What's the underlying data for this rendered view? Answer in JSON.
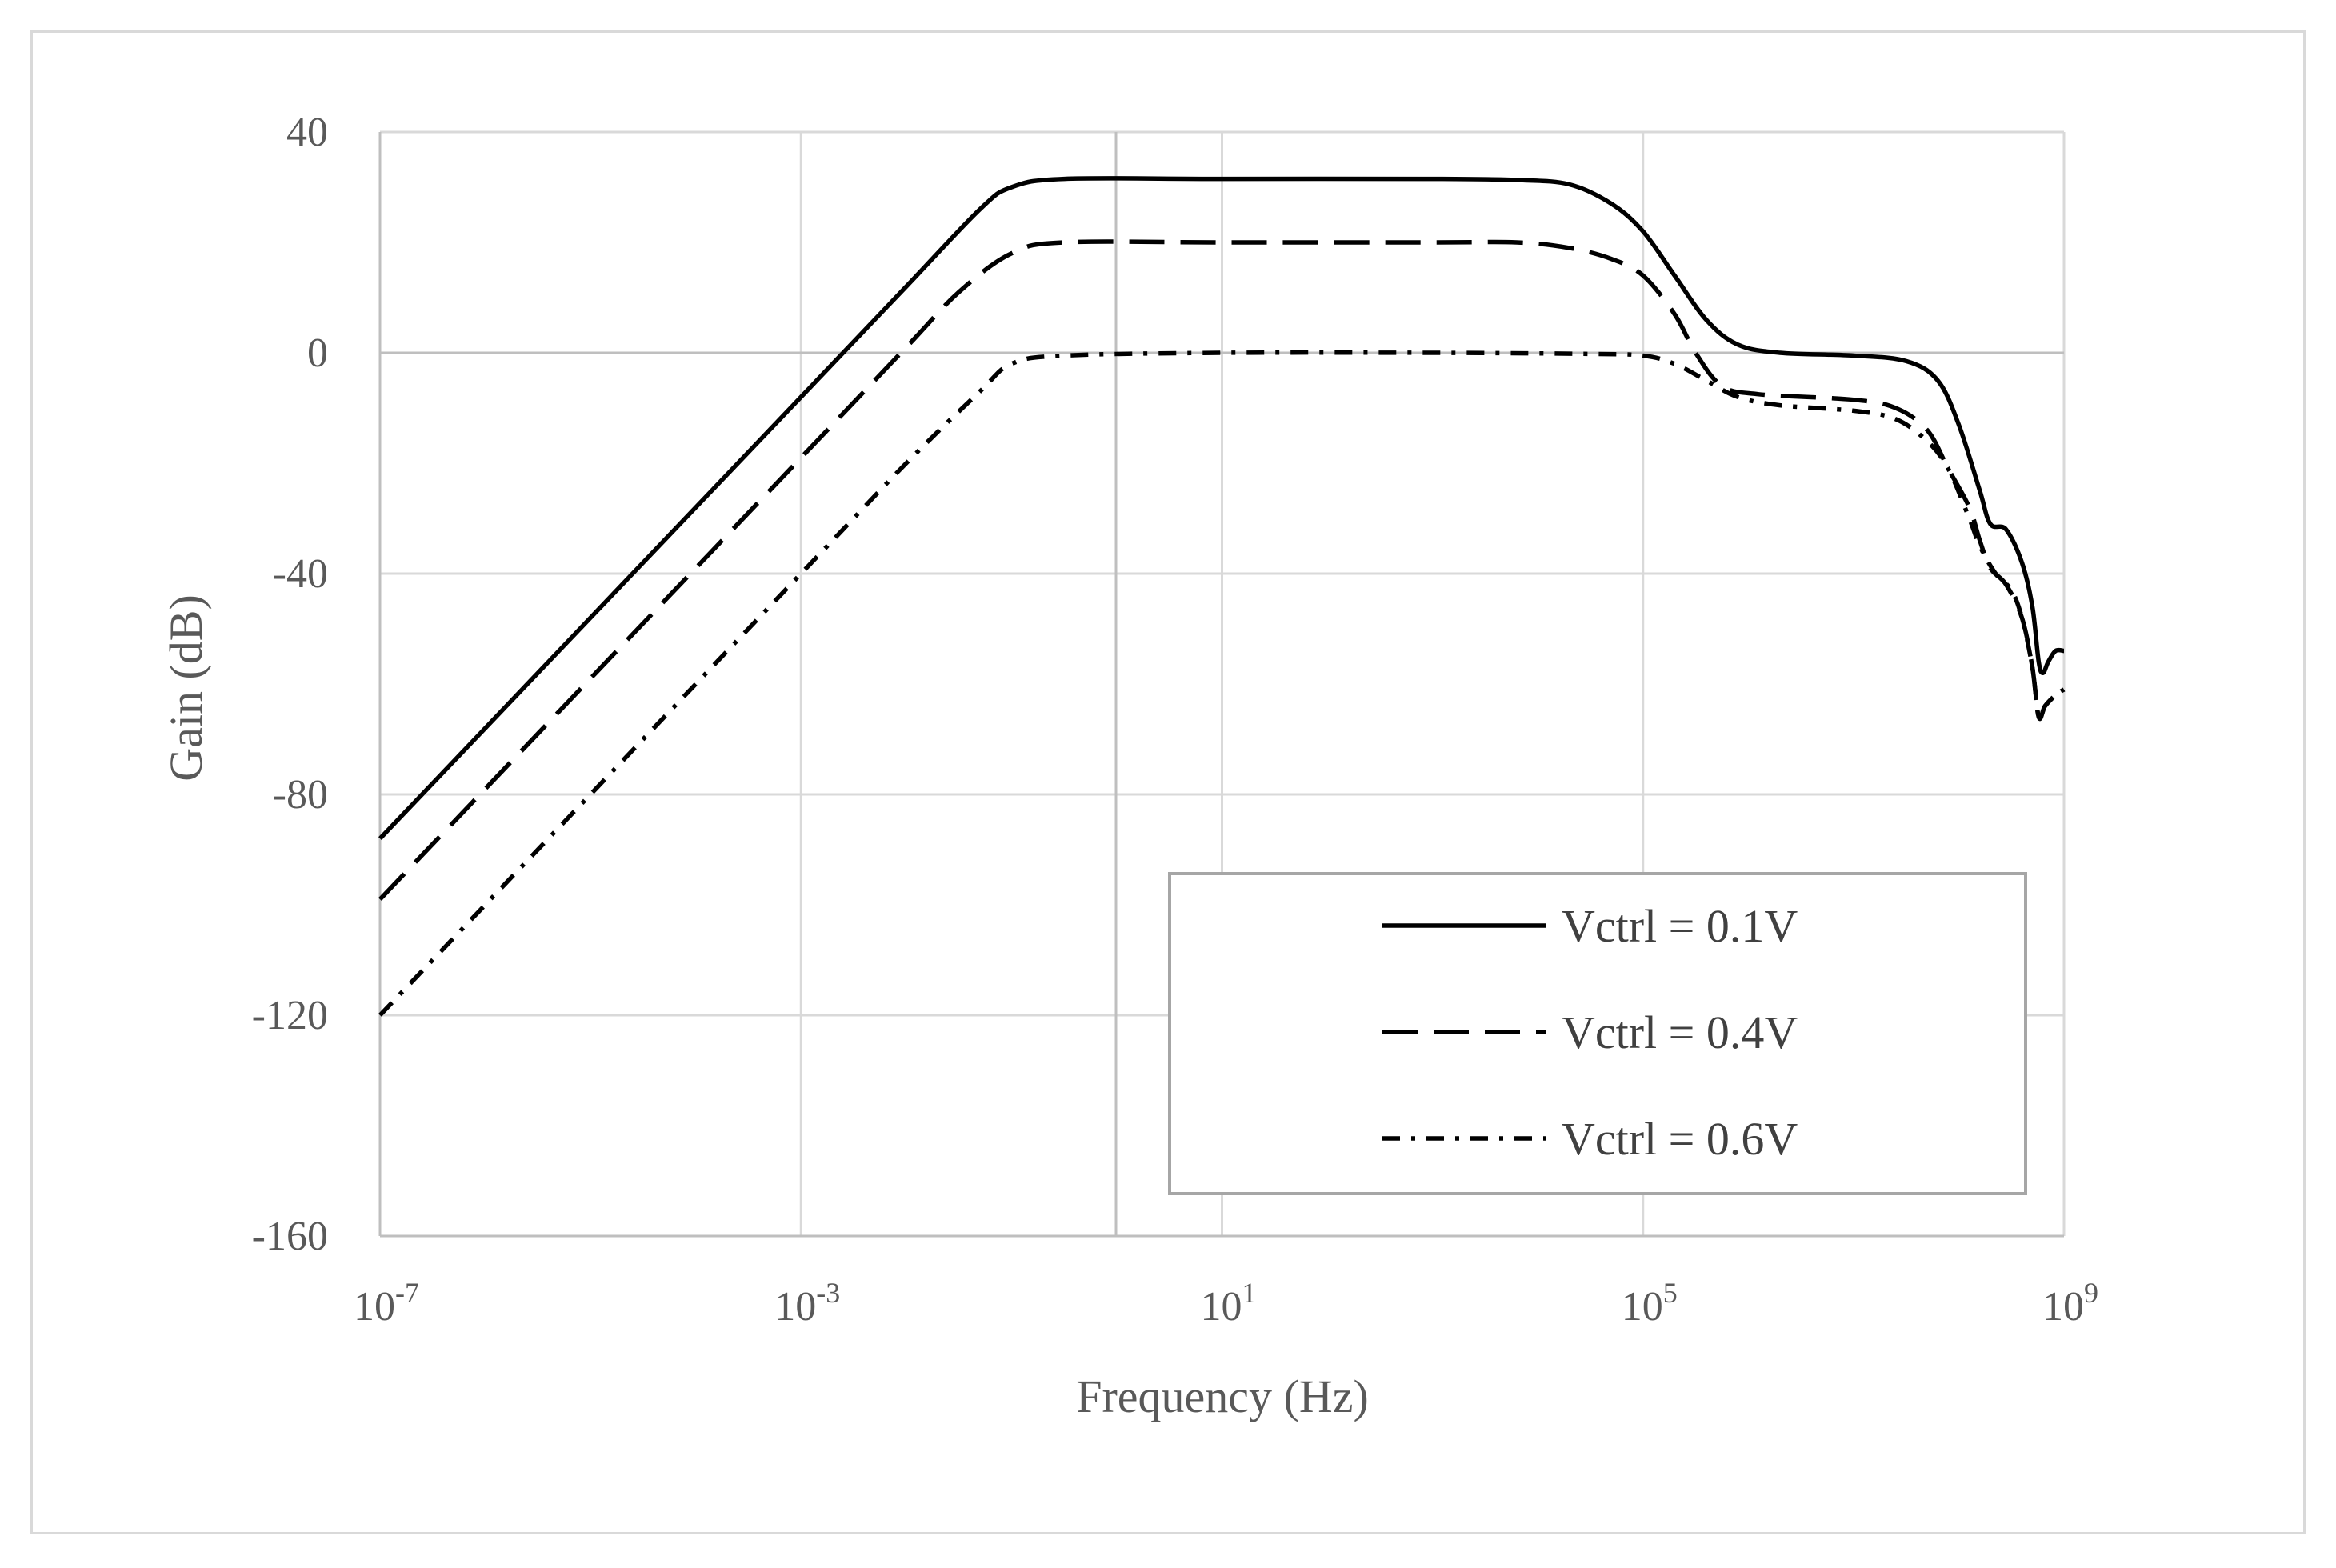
{
  "chart_data": {
    "type": "line",
    "title": "",
    "xlabel": "Frequency (Hz)",
    "ylabel": "Gain (dB)",
    "x_scale": "log10",
    "xlim_exponent": [
      -7,
      9
    ],
    "ylim": [
      -160,
      40
    ],
    "x_ticks": [
      {
        "base": "10",
        "exp": "-7",
        "value": -7
      },
      {
        "base": "10",
        "exp": "-3",
        "value": -3
      },
      {
        "base": "10",
        "exp": "1",
        "value": 1
      },
      {
        "base": "10",
        "exp": "5",
        "value": 5
      },
      {
        "base": "10",
        "exp": "9",
        "value": 9
      }
    ],
    "y_ticks": [
      "40",
      "0",
      "-40",
      "-80",
      "-120",
      "-160"
    ],
    "y_tick_values": [
      40,
      0,
      -40,
      -80,
      -120,
      -160
    ],
    "x_grid_extra": [
      -0.0
    ],
    "grid": true,
    "legend_position": "bottom-right",
    "series": [
      {
        "name": "Vctrl = 0.1V",
        "dash": "solid",
        "points": [
          [
            -7,
            -88
          ],
          [
            -3,
            -8
          ],
          [
            -2,
            12
          ],
          [
            -1.3,
            26
          ],
          [
            -1,
            30
          ],
          [
            -0.5,
            31.5
          ],
          [
            1,
            31.5
          ],
          [
            3,
            31.5
          ],
          [
            3.8,
            31.3
          ],
          [
            4.3,
            30.5
          ],
          [
            4.7,
            27
          ],
          [
            5,
            22
          ],
          [
            5.3,
            14
          ],
          [
            5.6,
            6
          ],
          [
            5.9,
            1.5
          ],
          [
            6.3,
            0
          ],
          [
            7,
            -0.5
          ],
          [
            7.5,
            -1.5
          ],
          [
            7.8,
            -5
          ],
          [
            8.0,
            -13
          ],
          [
            8.2,
            -25
          ],
          [
            8.3,
            -31
          ],
          [
            8.45,
            -32
          ],
          [
            8.6,
            -38
          ],
          [
            8.7,
            -46
          ],
          [
            8.76,
            -56
          ],
          [
            8.8,
            -58
          ],
          [
            8.85,
            -56
          ],
          [
            8.92,
            -54
          ],
          [
            9,
            -54
          ]
        ]
      },
      {
        "name": "Vctrl = 0.4V",
        "dash": "long-dash",
        "points": [
          [
            -7,
            -99
          ],
          [
            -3,
            -19
          ],
          [
            -2,
            1
          ],
          [
            -1.5,
            11
          ],
          [
            -1,
            18
          ],
          [
            -0.5,
            20
          ],
          [
            1,
            20
          ],
          [
            3,
            20
          ],
          [
            3.8,
            20
          ],
          [
            4.3,
            19
          ],
          [
            4.7,
            17
          ],
          [
            5,
            14
          ],
          [
            5.3,
            7
          ],
          [
            5.5,
            0
          ],
          [
            5.75,
            -6
          ],
          [
            6.1,
            -7.5
          ],
          [
            7,
            -8.5
          ],
          [
            7.4,
            -10
          ],
          [
            7.7,
            -14
          ],
          [
            7.9,
            -21
          ],
          [
            8.1,
            -28
          ],
          [
            8.2,
            -34
          ],
          [
            8.3,
            -39
          ],
          [
            8.45,
            -42
          ],
          [
            8.6,
            -48
          ],
          [
            8.7,
            -57
          ],
          [
            8.76,
            -66
          ],
          [
            8.82,
            -64
          ],
          [
            8.92,
            -62
          ],
          [
            9,
            -61
          ]
        ]
      },
      {
        "name": "Vctrl = 0.6V",
        "dash": "dash-dot",
        "points": [
          [
            -7,
            -120
          ],
          [
            -3,
            -40
          ],
          [
            -2,
            -20
          ],
          [
            -1.3,
            -7
          ],
          [
            -1,
            -2
          ],
          [
            -0.5,
            -0.5
          ],
          [
            1,
            0
          ],
          [
            3,
            0
          ],
          [
            4.5,
            -0.2
          ],
          [
            5,
            -0.5
          ],
          [
            5.3,
            -2
          ],
          [
            5.6,
            -5
          ],
          [
            5.9,
            -8
          ],
          [
            6.3,
            -9.5
          ],
          [
            7,
            -10.5
          ],
          [
            7.4,
            -12
          ],
          [
            7.7,
            -16
          ],
          [
            7.9,
            -21
          ],
          [
            8.1,
            -30
          ],
          [
            8.2,
            -35
          ],
          [
            8.35,
            -40
          ],
          [
            8.5,
            -43
          ],
          [
            8.6,
            -48
          ],
          [
            8.7,
            -57
          ],
          [
            8.76,
            -66
          ],
          [
            8.82,
            -64
          ],
          [
            8.92,
            -62
          ],
          [
            9,
            -61
          ]
        ]
      }
    ]
  }
}
